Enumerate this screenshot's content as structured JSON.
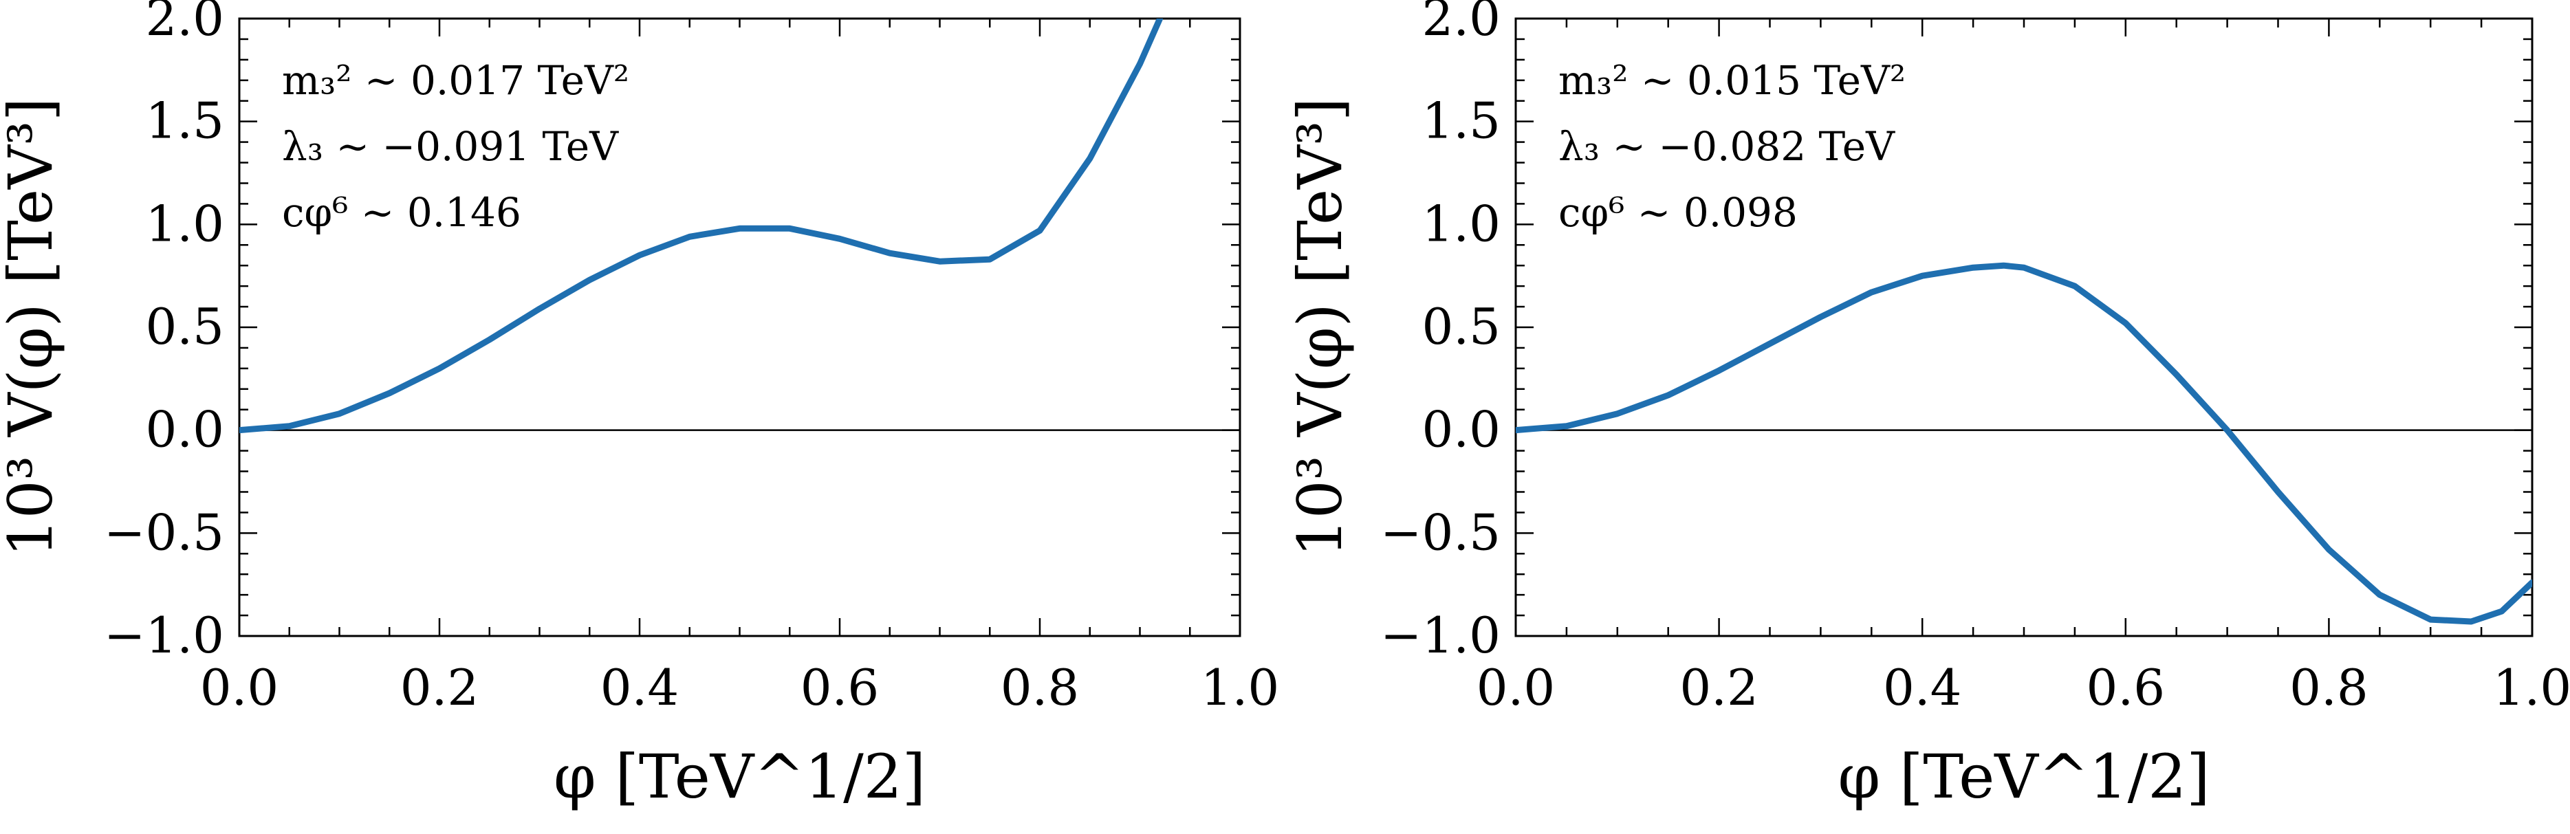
{
  "chart_data": [
    {
      "type": "line",
      "title": "",
      "xlabel": "φ [TeV^1/2]",
      "ylabel": "10³ V(φ) [TeV³]",
      "xlim": [
        0.0,
        1.0
      ],
      "ylim": [
        -1.0,
        2.0
      ],
      "grid": false,
      "x_ticks": [
        "0.0",
        "0.2",
        "0.4",
        "0.6",
        "0.8",
        "1.0"
      ],
      "y_ticks": [
        "−1.0",
        "−0.5",
        "0.0",
        "0.5",
        "1.0",
        "1.5",
        "2.0"
      ],
      "annotations": [
        "m₃² ∼ 0.017 TeV²",
        "λ₃ ∼ −0.091 TeV",
        "cφ⁶ ∼ 0.146"
      ],
      "series": [
        {
          "color": "#1f6fb0",
          "x": [
            0.0,
            0.05,
            0.1,
            0.15,
            0.2,
            0.25,
            0.3,
            0.35,
            0.4,
            0.45,
            0.5,
            0.55,
            0.6,
            0.65,
            0.7,
            0.75,
            0.8,
            0.85,
            0.9,
            0.92
          ],
          "y": [
            0.0,
            0.02,
            0.08,
            0.18,
            0.3,
            0.44,
            0.59,
            0.73,
            0.85,
            0.94,
            0.98,
            0.98,
            0.93,
            0.86,
            0.82,
            0.83,
            0.97,
            1.32,
            1.78,
            2.0
          ]
        }
      ]
    },
    {
      "type": "line",
      "title": "",
      "xlabel": "φ [TeV^1/2]",
      "ylabel": "10³ V(φ) [TeV³]",
      "xlim": [
        0.0,
        1.0
      ],
      "ylim": [
        -1.0,
        2.0
      ],
      "grid": false,
      "x_ticks": [
        "0.0",
        "0.2",
        "0.4",
        "0.6",
        "0.8",
        "1.0"
      ],
      "y_ticks": [
        "−1.0",
        "−0.5",
        "0.0",
        "0.5",
        "1.0",
        "1.5",
        "2.0"
      ],
      "annotations": [
        "m₃² ∼ 0.015 TeV²",
        "λ₃ ∼ −0.082 TeV",
        "cφ⁶ ∼ 0.098"
      ],
      "series": [
        {
          "color": "#1f6fb0",
          "x": [
            0.0,
            0.05,
            0.1,
            0.15,
            0.2,
            0.25,
            0.3,
            0.35,
            0.4,
            0.45,
            0.48,
            0.5,
            0.55,
            0.6,
            0.65,
            0.7,
            0.75,
            0.8,
            0.85,
            0.9,
            0.94,
            0.97,
            1.0
          ],
          "y": [
            0.0,
            0.02,
            0.08,
            0.17,
            0.29,
            0.42,
            0.55,
            0.67,
            0.75,
            0.79,
            0.8,
            0.79,
            0.7,
            0.52,
            0.27,
            0.0,
            -0.3,
            -0.58,
            -0.8,
            -0.92,
            -0.93,
            -0.88,
            -0.74
          ]
        }
      ]
    }
  ]
}
